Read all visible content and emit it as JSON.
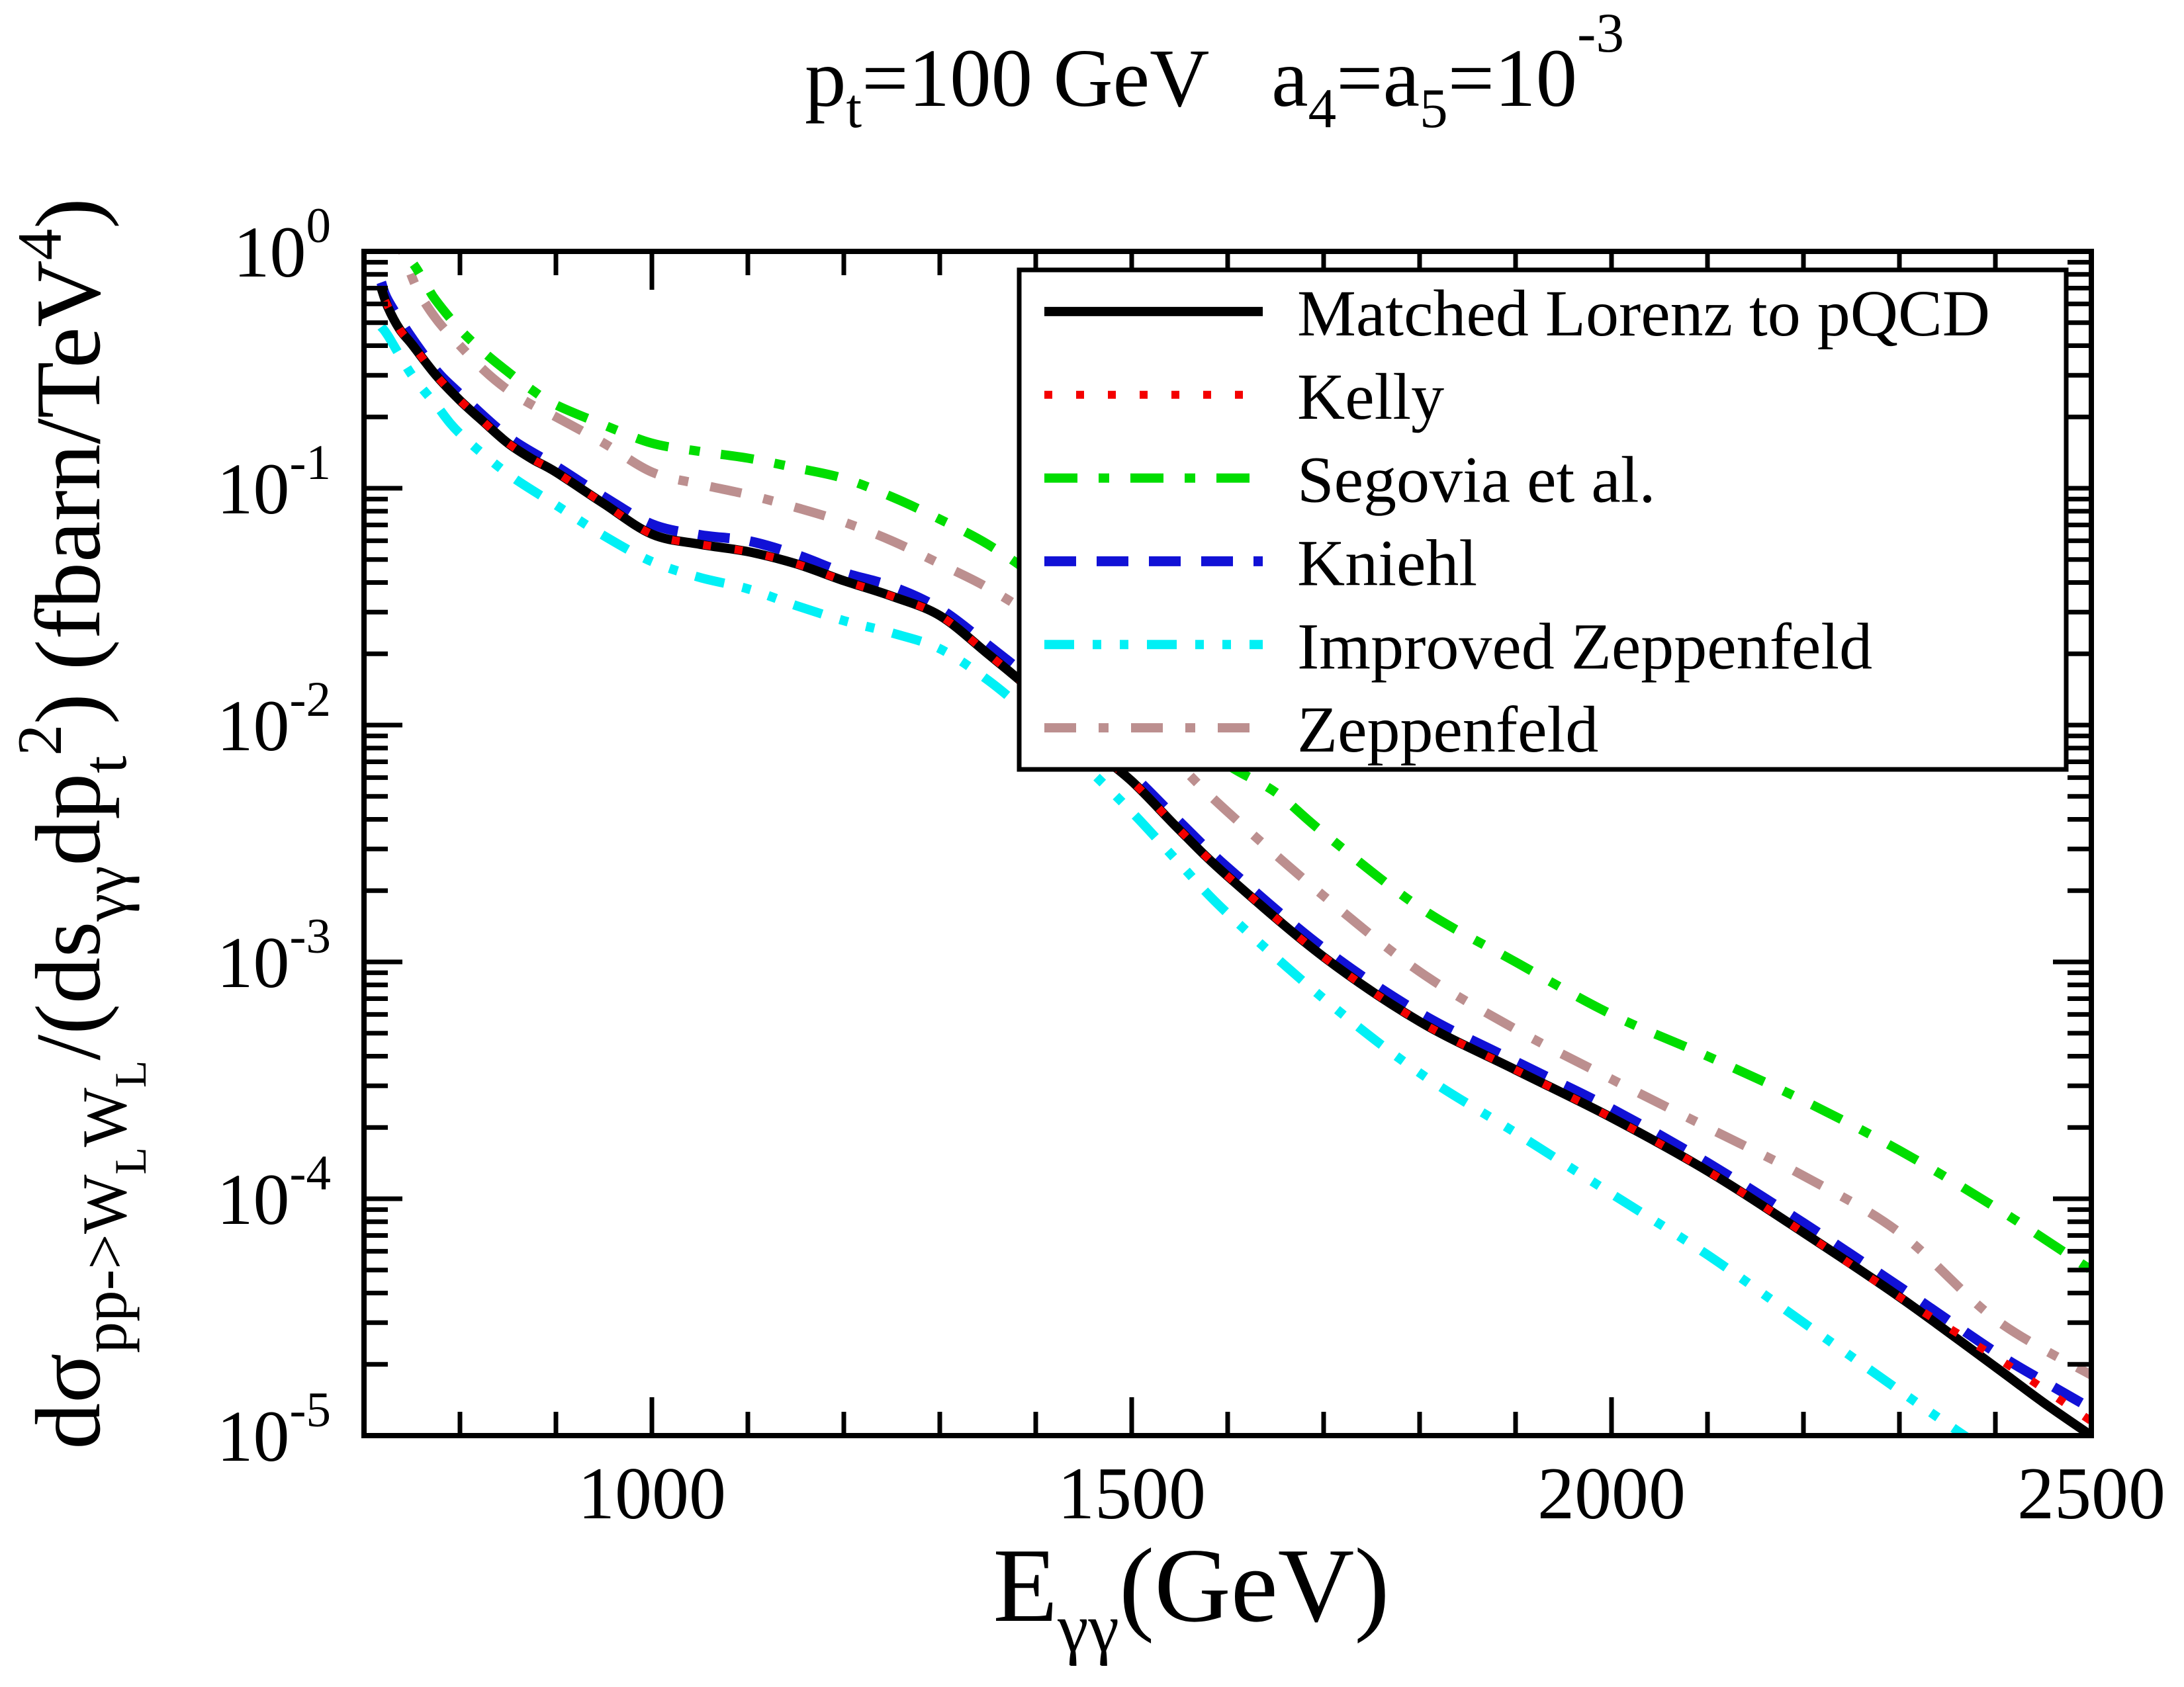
{
  "title": {
    "plain": "pt=100 GeV  a4=a5=10^-3",
    "parts": [
      {
        "t": "p",
        "s": 125,
        "dy": 0
      },
      {
        "t": "t",
        "s": 85,
        "dy": 32
      },
      {
        "t": "=100 GeV   a",
        "s": 125,
        "dy": -32
      },
      {
        "t": "4",
        "s": 85,
        "dy": 32
      },
      {
        "t": "=a",
        "s": 125,
        "dy": -32
      },
      {
        "t": "5",
        "s": 85,
        "dy": 32
      },
      {
        "t": "=10",
        "s": 125,
        "dy": -32
      },
      {
        "t": "-3",
        "s": 85,
        "dy": -82
      }
    ]
  },
  "x_axis": {
    "plain_label": "Egg (GeV)",
    "label_parts": [
      {
        "t": "E",
        "s": 160,
        "dy": 0
      },
      {
        "t": "γγ",
        "s": 105,
        "dy": 46
      },
      {
        "t": "(GeV)",
        "s": 160,
        "dy": -46
      }
    ],
    "range": [
      700,
      2500
    ],
    "major_ticks": [
      {
        "value": 1000,
        "label": "1000"
      },
      {
        "value": 1500,
        "label": "1500"
      },
      {
        "value": 2000,
        "label": "2000"
      },
      {
        "value": 2500,
        "label": "2500"
      }
    ],
    "minor_step": 100
  },
  "y_axis": {
    "plain_label": "dsigma_pp->WLWL/(ds_gg dp_t^2) (fbarn/TeV^4)",
    "label_parts": [
      {
        "t": "dσ",
        "s": 140,
        "dy": 0
      },
      {
        "t": "pp->W",
        "s": 95,
        "dy": 40
      },
      {
        "t": "L",
        "s": 68,
        "dy": 30
      },
      {
        "t": "W",
        "s": 95,
        "dy": -30
      },
      {
        "t": "L",
        "s": 68,
        "dy": 30
      },
      {
        "t": "/(ds",
        "s": 140,
        "dy": -70
      },
      {
        "t": "γγ",
        "s": 95,
        "dy": 40
      },
      {
        "t": "dp",
        "s": 140,
        "dy": -40
      },
      {
        "t": "t",
        "s": 95,
        "dy": 40
      },
      {
        "t": "2",
        "s": 95,
        "dy": -98
      },
      {
        "t": ") (fbarn/TeV",
        "s": 140,
        "dy": 58
      },
      {
        "t": "4",
        "s": 95,
        "dy": -58
      },
      {
        "t": ")",
        "s": 140,
        "dy": 58
      }
    ],
    "range_exponents": [
      0,
      -5
    ],
    "ticks": [
      {
        "base": "10",
        "exp": "0",
        "exponent": 0
      },
      {
        "base": "10",
        "exp": "-1",
        "exponent": -1
      },
      {
        "base": "10",
        "exp": "-2",
        "exponent": -2
      },
      {
        "base": "10",
        "exp": "-3",
        "exponent": -3
      },
      {
        "base": "10",
        "exp": "-4",
        "exponent": -4
      },
      {
        "base": "10",
        "exp": "-5",
        "exponent": -5
      }
    ]
  },
  "legend": {
    "entries": [
      {
        "label": "Matched Lorenz to pQCD",
        "series": "matched"
      },
      {
        "label": "Kelly",
        "series": "kelly"
      },
      {
        "label": "Segovia et al.",
        "series": "segovia"
      },
      {
        "label": "Kniehl",
        "series": "kniehl"
      },
      {
        "label": "Improved Zeppenfeld",
        "series": "improved_zeppenfeld"
      },
      {
        "label": "Zeppenfeld",
        "series": "zeppenfeld"
      }
    ]
  },
  "chart_data": {
    "type": "line",
    "title": "pt=100 GeV  a4=a5=10^-3",
    "xlabel": "E_gammagamma (GeV)",
    "ylabel": "dsigma/(ds_gg dp_t^2) (fbarn/TeV^4)",
    "xlim": [
      700,
      2500
    ],
    "ylog": true,
    "ylim": [
      1e-05,
      1
    ],
    "grid": false,
    "legend_position": "upper right",
    "draw_order": [
      "improved_zeppenfeld",
      "zeppenfeld",
      "segovia",
      "kniehl",
      "matched",
      "kelly"
    ],
    "series": [
      {
        "id": "matched",
        "name": "Matched Lorenz to pQCD",
        "color": "#000000",
        "dash": [],
        "width": 14,
        "points": [
          [
            718,
            0.7
          ],
          [
            725,
            0.58
          ],
          [
            737,
            0.47
          ],
          [
            750,
            0.405
          ],
          [
            775,
            0.3
          ],
          [
            800,
            0.235
          ],
          [
            825,
            0.19
          ],
          [
            850,
            0.155
          ],
          [
            875,
            0.133
          ],
          [
            900,
            0.117
          ],
          [
            950,
            0.086
          ],
          [
            1000,
            0.064
          ],
          [
            1050,
            0.058
          ],
          [
            1100,
            0.054
          ],
          [
            1150,
            0.048
          ],
          [
            1200,
            0.0407
          ],
          [
            1250,
            0.035
          ],
          [
            1300,
            0.029
          ],
          [
            1350,
            0.02
          ],
          [
            1400,
            0.0135
          ],
          [
            1450,
            0.0085
          ],
          [
            1500,
            0.0058
          ],
          [
            1550,
            0.0036
          ],
          [
            1600,
            0.0023
          ],
          [
            1700,
            0.00105
          ],
          [
            1800,
            0.00056
          ],
          [
            1900,
            0.00035
          ],
          [
            2000,
            0.00022
          ],
          [
            2100,
            0.000131
          ],
          [
            2200,
            7.2e-05
          ],
          [
            2300,
            3.85e-05
          ],
          [
            2400,
            1.95e-05
          ],
          [
            2450,
            1.38e-05
          ],
          [
            2500,
            1e-05
          ]
        ]
      },
      {
        "id": "kelly",
        "name": "Kelly",
        "color": "#f40000",
        "dash": [
          12,
          36
        ],
        "width": 12,
        "points": [
          [
            722,
            0.62
          ],
          [
            737,
            0.47
          ],
          [
            750,
            0.405
          ],
          [
            775,
            0.3
          ],
          [
            800,
            0.235
          ],
          [
            825,
            0.19
          ],
          [
            850,
            0.155
          ],
          [
            875,
            0.133
          ],
          [
            900,
            0.117
          ],
          [
            950,
            0.086
          ],
          [
            1000,
            0.064
          ],
          [
            1050,
            0.058
          ],
          [
            1100,
            0.054
          ],
          [
            1150,
            0.048
          ],
          [
            1200,
            0.0407
          ],
          [
            1250,
            0.035
          ],
          [
            1300,
            0.029
          ],
          [
            1350,
            0.02
          ],
          [
            1400,
            0.0135
          ],
          [
            1450,
            0.0085
          ],
          [
            1500,
            0.0058
          ],
          [
            1550,
            0.0036
          ],
          [
            1600,
            0.0023
          ],
          [
            1700,
            0.00105
          ],
          [
            1800,
            0.00056
          ],
          [
            1900,
            0.00035
          ],
          [
            2000,
            0.00022
          ],
          [
            2100,
            0.000131
          ],
          [
            2200,
            7.2e-05
          ],
          [
            2300,
            3.85e-05
          ],
          [
            2400,
            2.15e-05
          ],
          [
            2450,
            1.58e-05
          ],
          [
            2500,
            1.15e-05
          ]
        ]
      },
      {
        "id": "segovia",
        "name": "Segovia et al.",
        "color": "#00dd00",
        "dash": [
          50,
          32,
          16,
          32
        ],
        "width": 14,
        "points": [
          [
            722,
            1.35
          ],
          [
            735,
            1.0
          ],
          [
            750,
            0.9
          ],
          [
            765,
            0.72
          ],
          [
            775,
            0.62
          ],
          [
            800,
            0.468
          ],
          [
            825,
            0.375
          ],
          [
            850,
            0.31
          ],
          [
            875,
            0.26
          ],
          [
            900,
            0.225
          ],
          [
            950,
            0.185
          ],
          [
            1000,
            0.155
          ],
          [
            1050,
            0.143
          ],
          [
            1100,
            0.134
          ],
          [
            1150,
            0.122
          ],
          [
            1200,
            0.11
          ],
          [
            1250,
            0.092
          ],
          [
            1300,
            0.074
          ],
          [
            1350,
            0.058
          ],
          [
            1400,
            0.042
          ],
          [
            1450,
            0.027
          ],
          [
            1500,
            0.016
          ],
          [
            1550,
            0.01
          ],
          [
            1600,
            0.0068
          ],
          [
            1650,
            0.0052
          ],
          [
            1700,
            0.0035
          ],
          [
            1800,
            0.0017
          ],
          [
            1900,
            0.001
          ],
          [
            2000,
            0.0006
          ],
          [
            2100,
            0.0004
          ],
          [
            2200,
            0.00026
          ],
          [
            2300,
            0.00016
          ],
          [
            2400,
            9.2e-05
          ],
          [
            2500,
            5e-05
          ]
        ]
      },
      {
        "id": "kniehl",
        "name": "Kniehl",
        "color": "#1111d6",
        "dash": [
          48,
          31
        ],
        "width": 15,
        "points": [
          [
            718,
            0.74
          ],
          [
            725,
            0.62
          ],
          [
            750,
            0.43
          ],
          [
            775,
            0.315
          ],
          [
            800,
            0.25
          ],
          [
            850,
            0.165
          ],
          [
            900,
            0.124
          ],
          [
            950,
            0.092
          ],
          [
            1000,
            0.0705
          ],
          [
            1050,
            0.0635
          ],
          [
            1100,
            0.06
          ],
          [
            1150,
            0.0525
          ],
          [
            1200,
            0.044
          ],
          [
            1250,
            0.0385
          ],
          [
            1300,
            0.031
          ],
          [
            1350,
            0.0218
          ],
          [
            1400,
            0.0149
          ],
          [
            1450,
            0.0093
          ],
          [
            1500,
            0.0062
          ],
          [
            1550,
            0.0039
          ],
          [
            1600,
            0.0025
          ],
          [
            1700,
            0.00114
          ],
          [
            1800,
            0.00061
          ],
          [
            1900,
            0.00038
          ],
          [
            2000,
            0.00024
          ],
          [
            2100,
            0.000142
          ],
          [
            2200,
            7.9e-05
          ],
          [
            2300,
            4.25e-05
          ],
          [
            2400,
            2.25e-05
          ],
          [
            2450,
            1.7e-05
          ],
          [
            2500,
            1.3e-05
          ]
        ]
      },
      {
        "id": "improved_zeppenfeld",
        "name": "Improved Zeppenfeld",
        "color": "#00f0f5",
        "dash": [
          45,
          28,
          13,
          28,
          13,
          28
        ],
        "width": 14,
        "points": [
          [
            718,
            0.48
          ],
          [
            725,
            0.44
          ],
          [
            750,
            0.3
          ],
          [
            775,
            0.225
          ],
          [
            800,
            0.17
          ],
          [
            850,
            0.115
          ],
          [
            900,
            0.085
          ],
          [
            950,
            0.063
          ],
          [
            1000,
            0.049
          ],
          [
            1050,
            0.042
          ],
          [
            1100,
            0.0376
          ],
          [
            1150,
            0.032
          ],
          [
            1200,
            0.0276
          ],
          [
            1250,
            0.0245
          ],
          [
            1300,
            0.021
          ],
          [
            1350,
            0.0155
          ],
          [
            1400,
            0.0105
          ],
          [
            1450,
            0.0068
          ],
          [
            1500,
            0.0043
          ],
          [
            1550,
            0.0026
          ],
          [
            1600,
            0.0016
          ],
          [
            1700,
            0.0007
          ],
          [
            1800,
            0.00034
          ],
          [
            1900,
            0.00019
          ],
          [
            2000,
            0.000105
          ],
          [
            2100,
            5.8e-05
          ],
          [
            2200,
            3e-05
          ],
          [
            2300,
            1.55e-05
          ],
          [
            2360,
            1.05e-05
          ],
          [
            2420,
            7.2e-06
          ]
        ]
      },
      {
        "id": "zeppenfeld",
        "name": "Zeppenfeld",
        "color": "#bc8f8f",
        "dash": [
          48,
          34,
          15,
          34
        ],
        "width": 14,
        "points": [
          [
            726,
            1.3
          ],
          [
            740,
            1.0
          ],
          [
            755,
            0.7
          ],
          [
            775,
            0.52
          ],
          [
            800,
            0.4
          ],
          [
            825,
            0.315
          ],
          [
            850,
            0.26
          ],
          [
            875,
            0.225
          ],
          [
            900,
            0.2
          ],
          [
            950,
            0.155
          ],
          [
            1000,
            0.117
          ],
          [
            1050,
            0.104
          ],
          [
            1100,
            0.094
          ],
          [
            1150,
            0.083
          ],
          [
            1200,
            0.072
          ],
          [
            1250,
            0.06
          ],
          [
            1300,
            0.048
          ],
          [
            1350,
            0.038
          ],
          [
            1400,
            0.028
          ],
          [
            1450,
            0.018
          ],
          [
            1500,
            0.0115
          ],
          [
            1550,
            0.0068
          ],
          [
            1600,
            0.0043
          ],
          [
            1700,
            0.0019
          ],
          [
            1800,
            0.00091
          ],
          [
            1900,
            0.00052
          ],
          [
            2000,
            0.00032
          ],
          [
            2100,
            0.0002
          ],
          [
            2200,
            0.000125
          ],
          [
            2300,
            7.2e-05
          ],
          [
            2400,
            3.1e-05
          ],
          [
            2500,
            1.8e-05
          ]
        ]
      }
    ]
  },
  "colors": {
    "background": "#ffffff",
    "frame": "#000000",
    "matched": "#000000",
    "kelly": "#f40000",
    "segovia": "#00dd00",
    "kniehl": "#1111d6",
    "improved_zeppenfeld": "#00f0f5",
    "zeppenfeld": "#bc8f8f"
  }
}
